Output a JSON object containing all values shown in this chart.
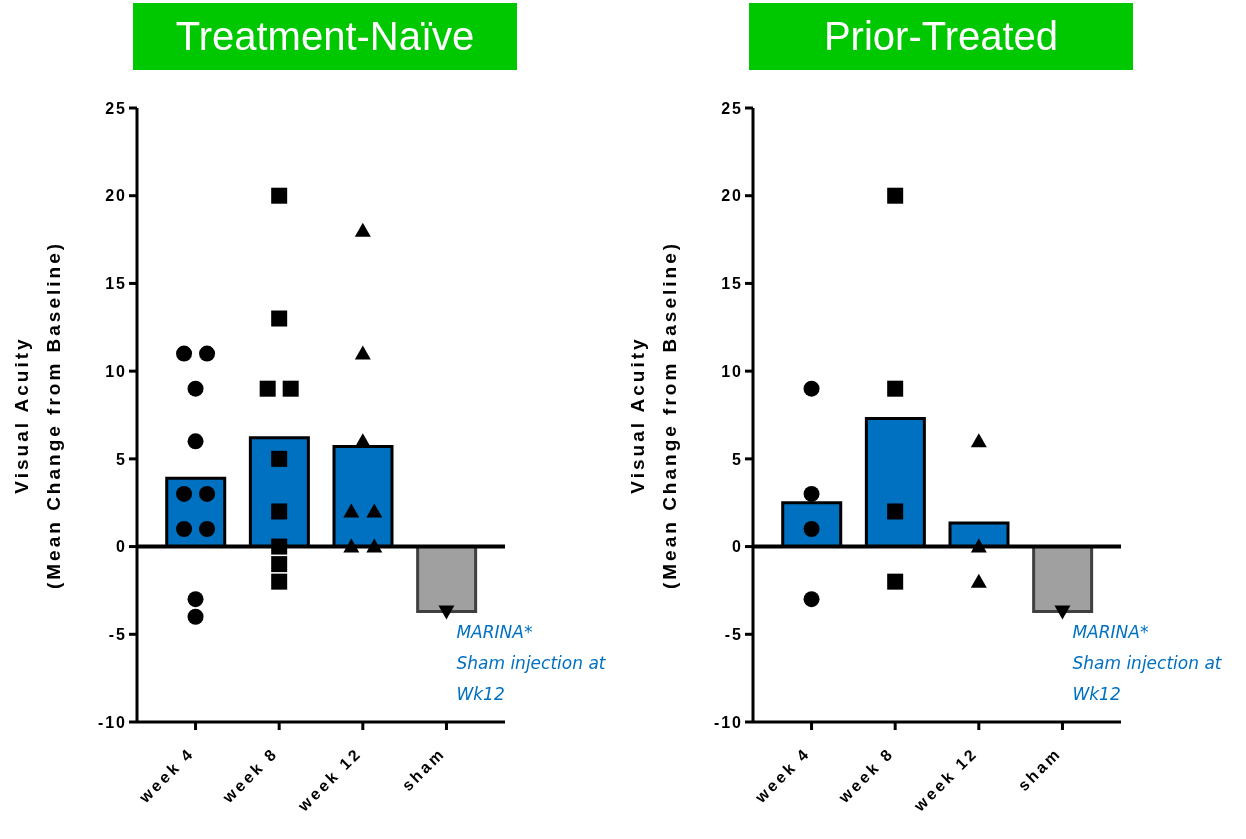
{
  "chart_data": [
    {
      "type": "bar",
      "title": "Treatment-Naïve",
      "ylabel": "Visual Acuity\n(Mean Change from Baseline)",
      "categories": [
        "week 4",
        "week 8",
        "week 12",
        "sham"
      ],
      "ylim": [
        -10,
        25
      ],
      "yticks": [
        -10,
        -5,
        0,
        5,
        10,
        15,
        20,
        25
      ],
      "grid": false,
      "legend": false,
      "annotations": [
        {
          "text": "MARINA*\nSham injection at\nWk12",
          "x": "sham",
          "y": -3.7
        }
      ],
      "ref_lines": [
        {
          "axis": "y",
          "value": 0
        }
      ],
      "series": [
        {
          "values": [
            3.9,
            6.2,
            5.7,
            -3.7
          ],
          "colors": [
            "#0070c0",
            "#0070c0",
            "#0070c0",
            "#a0a0a0"
          ]
        },
        {
          "type": "scatter",
          "color": "#000000",
          "marker": "circle",
          "x": [
            "week 4",
            "week 4",
            "week 4",
            "week 4",
            "week 4",
            "week 4",
            "week 4",
            "week 4",
            "week 4",
            "week 4"
          ],
          "values": [
            11,
            11,
            9,
            6,
            3,
            3,
            1,
            1,
            -3,
            -4
          ]
        },
        {
          "type": "scatter",
          "color": "#000000",
          "marker": "square",
          "x": [
            "week 8",
            "week 8",
            "week 8",
            "week 8",
            "week 8",
            "week 8",
            "week 8",
            "week 8",
            "week 8"
          ],
          "values": [
            20,
            13,
            9,
            9,
            5,
            2,
            0,
            -1,
            -2
          ]
        },
        {
          "type": "scatter",
          "color": "#000000",
          "marker": "triangle",
          "x": [
            "week 12",
            "week 12",
            "week 12",
            "week 12",
            "week 12",
            "week 12",
            "week 12"
          ],
          "values": [
            18,
            11,
            6,
            2,
            2,
            0,
            0
          ]
        },
        {
          "type": "scatter",
          "color": "#000000",
          "marker": "triangle-down",
          "x": [
            "sham"
          ],
          "values": [
            -3.7
          ]
        }
      ]
    },
    {
      "type": "bar",
      "title": "Prior-Treated",
      "ylabel": "Visual Acuity\n(Mean Change from Baseline)",
      "categories": [
        "week 4",
        "week 8",
        "week 12",
        "sham"
      ],
      "ylim": [
        -10,
        25
      ],
      "yticks": [
        -10,
        -5,
        0,
        5,
        10,
        15,
        20,
        25
      ],
      "grid": false,
      "legend": false,
      "annotations": [
        {
          "text": "MARINA*\nSham injection at\nWk12",
          "x": "sham",
          "y": -3.7
        }
      ],
      "ref_lines": [
        {
          "axis": "y",
          "value": 0
        }
      ],
      "series": [
        {
          "values": [
            2.5,
            7.3,
            1.35,
            -3.7
          ],
          "colors": [
            "#0070c0",
            "#0070c0",
            "#0070c0",
            "#a0a0a0"
          ]
        },
        {
          "type": "scatter",
          "color": "#000000",
          "marker": "circle",
          "x": [
            "week 4",
            "week 4",
            "week 4",
            "week 4"
          ],
          "values": [
            9,
            3,
            1,
            -3
          ]
        },
        {
          "type": "scatter",
          "color": "#000000",
          "marker": "square",
          "x": [
            "week 8",
            "week 8",
            "week 8",
            "week 8"
          ],
          "values": [
            20,
            9,
            2,
            -2
          ]
        },
        {
          "type": "scatter",
          "color": "#000000",
          "marker": "triangle",
          "x": [
            "week 12",
            "week 12",
            "week 12"
          ],
          "values": [
            6,
            0,
            -2
          ]
        },
        {
          "type": "scatter",
          "color": "#000000",
          "marker": "triangle-down",
          "x": [
            "sham"
          ],
          "values": [
            -3.7
          ]
        }
      ]
    }
  ]
}
